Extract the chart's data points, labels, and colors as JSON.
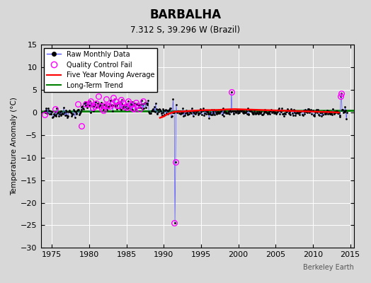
{
  "title": "BARBALHA",
  "subtitle": "7.312 S, 39.296 W (Brazil)",
  "ylabel": "Temperature Anomaly (°C)",
  "watermark": "Berkeley Earth",
  "xlim": [
    1973.5,
    2015.5
  ],
  "ylim": [
    -30,
    15
  ],
  "yticks": [
    -30,
    -25,
    -20,
    -15,
    -10,
    -5,
    0,
    5,
    10,
    15
  ],
  "xticks": [
    1975,
    1980,
    1985,
    1990,
    1995,
    2000,
    2005,
    2010,
    2015
  ],
  "bg_color": "#d8d8d8",
  "qc_fail_x": [
    1974.0,
    1975.42,
    1978.5,
    1978.92,
    1979.5,
    1980.0,
    1980.17,
    1980.5,
    1980.75,
    1981.0,
    1981.25,
    1981.5,
    1981.75,
    1981.92,
    1982.0,
    1982.25,
    1982.5,
    1982.75,
    1983.0,
    1983.25,
    1983.5,
    1983.75,
    1984.0,
    1984.25,
    1984.5,
    1984.75,
    1985.0,
    1985.25,
    1985.5,
    1985.75,
    1986.0,
    1986.25,
    1986.5,
    1986.75,
    1987.25,
    1991.42,
    1991.58,
    1999.08,
    2013.75,
    2013.83
  ],
  "qc_fail_y": [
    -0.5,
    0.8,
    1.9,
    -3.0,
    1.8,
    1.8,
    2.5,
    1.0,
    1.4,
    2.0,
    3.5,
    1.3,
    0.8,
    0.5,
    1.5,
    3.0,
    1.6,
    1.3,
    1.8,
    3.2,
    2.5,
    1.5,
    1.5,
    2.8,
    2.1,
    1.2,
    1.0,
    2.4,
    1.8,
    0.9,
    0.8,
    2.2,
    1.6,
    0.7,
    2.5,
    -24.5,
    -11.0,
    4.5,
    3.5,
    4.2
  ],
  "moving_avg_x": [
    1989.5,
    1990.0,
    1990.5,
    1991.5,
    1992.5,
    1993.5,
    1994.5,
    1995.5,
    1996.5,
    1997.5,
    1998.5,
    1999.5,
    2000.5,
    2001.5,
    2002.5,
    2003.5,
    2004.5,
    2005.5,
    2006.5,
    2007.5,
    2008.5,
    2009.5,
    2010.5,
    2011.5,
    2012.5,
    2013.5
  ],
  "moving_avg_y": [
    -1.2,
    -0.9,
    -0.4,
    0.15,
    0.2,
    0.3,
    0.4,
    0.5,
    0.5,
    0.55,
    0.65,
    0.7,
    0.65,
    0.6,
    0.55,
    0.5,
    0.45,
    0.4,
    0.35,
    0.3,
    0.25,
    0.2,
    0.15,
    0.1,
    0.05,
    -0.05
  ],
  "trend_x": [
    1973.5,
    2015.5
  ],
  "trend_y": [
    0.15,
    0.35
  ]
}
